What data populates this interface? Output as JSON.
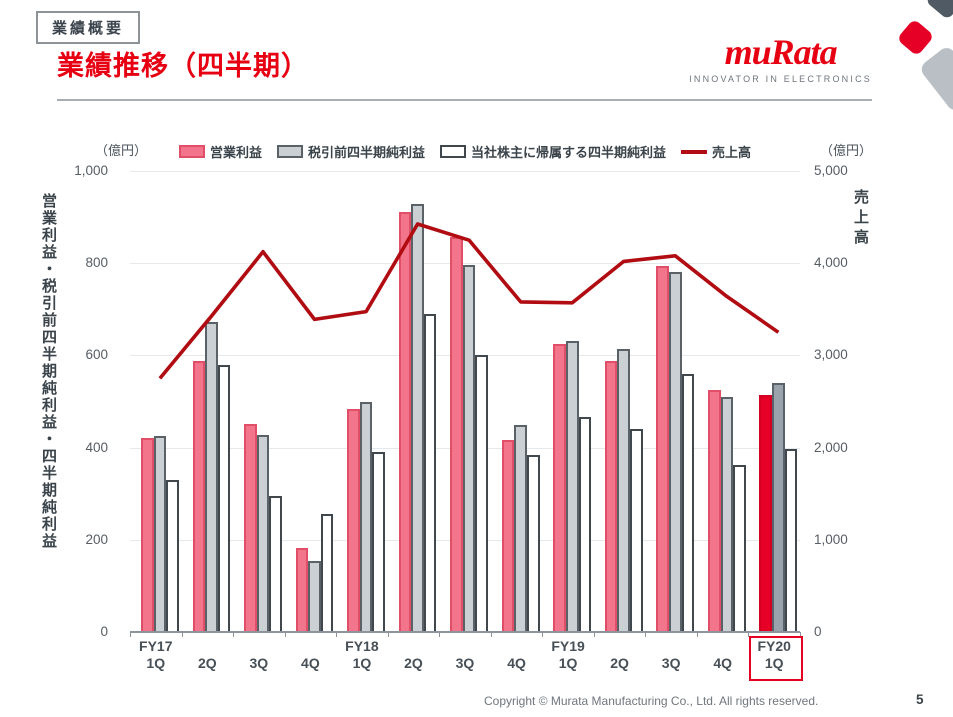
{
  "header": {
    "section_label": "業績概要",
    "title": "業績推移（四半期）",
    "logo": {
      "brand": "muRata",
      "tagline": "INNOVATOR IN ELECTRONICS"
    },
    "accent_red": "#e60012"
  },
  "chart_data": {
    "type": "bar+line combo",
    "categories": [
      {
        "fy": "FY17",
        "q": "1Q"
      },
      {
        "fy": "",
        "q": "2Q"
      },
      {
        "fy": "",
        "q": "3Q"
      },
      {
        "fy": "",
        "q": "4Q"
      },
      {
        "fy": "FY18",
        "q": "1Q"
      },
      {
        "fy": "",
        "q": "2Q"
      },
      {
        "fy": "",
        "q": "3Q"
      },
      {
        "fy": "",
        "q": "4Q"
      },
      {
        "fy": "FY19",
        "q": "1Q"
      },
      {
        "fy": "",
        "q": "2Q"
      },
      {
        "fy": "",
        "q": "3Q"
      },
      {
        "fy": "",
        "q": "4Q"
      },
      {
        "fy": "FY20",
        "q": "1Q"
      }
    ],
    "series": [
      {
        "name": "営業利益",
        "type": "bar",
        "fill": "#f3758c",
        "border": "#e04e68",
        "values": [
          420,
          588,
          452,
          182,
          484,
          912,
          856,
          417,
          625,
          588,
          795,
          525,
          515
        ]
      },
      {
        "name": "税引前四半期純利益",
        "type": "bar",
        "fill": "#cbd0d4",
        "border": "#5a6268",
        "values": [
          425,
          673,
          427,
          155,
          500,
          928,
          797,
          450,
          632,
          615,
          780,
          510,
          540
        ]
      },
      {
        "name": "当社株主に帰属する四半期純利益",
        "type": "bar",
        "fill": "#ffffff",
        "border": "#40474d",
        "values": [
          330,
          580,
          295,
          255,
          390,
          690,
          600,
          385,
          467,
          440,
          560,
          362,
          396
        ]
      },
      {
        "name": "売上高",
        "type": "line",
        "color": "#b00c12",
        "axis": "right",
        "values": [
          2750,
          3425,
          4125,
          3390,
          3475,
          4425,
          4250,
          3580,
          3570,
          4020,
          4080,
          3640,
          3250
        ]
      }
    ],
    "left_axis": {
      "unit": "（億円）",
      "title": "営業利益・税引前四半期純利益・四半期純利益",
      "ticks": [
        "1,000",
        "800",
        "600",
        "400",
        "200",
        "0"
      ],
      "min": 0,
      "max": 1000
    },
    "right_axis": {
      "unit": "（億円）",
      "title": "売上高",
      "ticks": [
        "5,000",
        "4,000",
        "3,000",
        "2,000",
        "1,000",
        "0"
      ],
      "min": 0,
      "max": 5000
    },
    "grid": true,
    "legend_position": "top",
    "highlight": {
      "index": 12,
      "fills": [
        "#e60026",
        "#9aa3ab",
        "#ffffff"
      ],
      "borders": [
        "#d40023",
        "#59616a",
        "#40474d"
      ],
      "box_color": "#e60021"
    }
  },
  "footer": {
    "copyright": "Copyright © Murata Manufacturing Co., Ltd. All rights reserved.",
    "page": "5"
  }
}
